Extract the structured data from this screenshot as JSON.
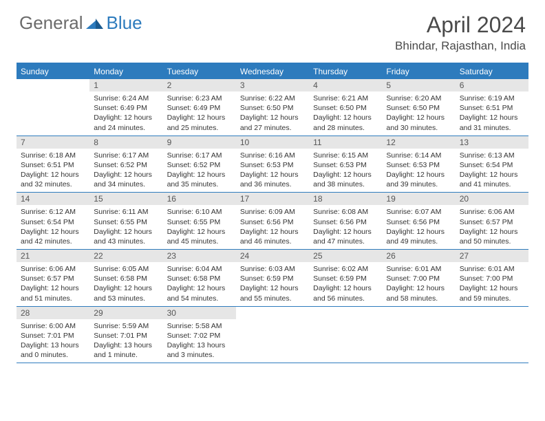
{
  "logo": {
    "text1": "General",
    "text2": "Blue"
  },
  "title": "April 2024",
  "location": "Bhindar, Rajasthan, India",
  "colors": {
    "header_bg": "#2d7bbd",
    "header_text": "#ffffff",
    "daynum_bg": "#e6e6e6",
    "daynum_text": "#555555",
    "info_text": "#333333",
    "rule": "#2d7bbd",
    "logo_gray": "#6b6b6b",
    "logo_blue": "#2d7bbd"
  },
  "day_names": [
    "Sunday",
    "Monday",
    "Tuesday",
    "Wednesday",
    "Thursday",
    "Friday",
    "Saturday"
  ],
  "weeks": [
    [
      {
        "n": "",
        "sunrise": "",
        "sunset": "",
        "daylight": ""
      },
      {
        "n": "1",
        "sunrise": "Sunrise: 6:24 AM",
        "sunset": "Sunset: 6:49 PM",
        "daylight": "Daylight: 12 hours and 24 minutes."
      },
      {
        "n": "2",
        "sunrise": "Sunrise: 6:23 AM",
        "sunset": "Sunset: 6:49 PM",
        "daylight": "Daylight: 12 hours and 25 minutes."
      },
      {
        "n": "3",
        "sunrise": "Sunrise: 6:22 AM",
        "sunset": "Sunset: 6:50 PM",
        "daylight": "Daylight: 12 hours and 27 minutes."
      },
      {
        "n": "4",
        "sunrise": "Sunrise: 6:21 AM",
        "sunset": "Sunset: 6:50 PM",
        "daylight": "Daylight: 12 hours and 28 minutes."
      },
      {
        "n": "5",
        "sunrise": "Sunrise: 6:20 AM",
        "sunset": "Sunset: 6:50 PM",
        "daylight": "Daylight: 12 hours and 30 minutes."
      },
      {
        "n": "6",
        "sunrise": "Sunrise: 6:19 AM",
        "sunset": "Sunset: 6:51 PM",
        "daylight": "Daylight: 12 hours and 31 minutes."
      }
    ],
    [
      {
        "n": "7",
        "sunrise": "Sunrise: 6:18 AM",
        "sunset": "Sunset: 6:51 PM",
        "daylight": "Daylight: 12 hours and 32 minutes."
      },
      {
        "n": "8",
        "sunrise": "Sunrise: 6:17 AM",
        "sunset": "Sunset: 6:52 PM",
        "daylight": "Daylight: 12 hours and 34 minutes."
      },
      {
        "n": "9",
        "sunrise": "Sunrise: 6:17 AM",
        "sunset": "Sunset: 6:52 PM",
        "daylight": "Daylight: 12 hours and 35 minutes."
      },
      {
        "n": "10",
        "sunrise": "Sunrise: 6:16 AM",
        "sunset": "Sunset: 6:53 PM",
        "daylight": "Daylight: 12 hours and 36 minutes."
      },
      {
        "n": "11",
        "sunrise": "Sunrise: 6:15 AM",
        "sunset": "Sunset: 6:53 PM",
        "daylight": "Daylight: 12 hours and 38 minutes."
      },
      {
        "n": "12",
        "sunrise": "Sunrise: 6:14 AM",
        "sunset": "Sunset: 6:53 PM",
        "daylight": "Daylight: 12 hours and 39 minutes."
      },
      {
        "n": "13",
        "sunrise": "Sunrise: 6:13 AM",
        "sunset": "Sunset: 6:54 PM",
        "daylight": "Daylight: 12 hours and 41 minutes."
      }
    ],
    [
      {
        "n": "14",
        "sunrise": "Sunrise: 6:12 AM",
        "sunset": "Sunset: 6:54 PM",
        "daylight": "Daylight: 12 hours and 42 minutes."
      },
      {
        "n": "15",
        "sunrise": "Sunrise: 6:11 AM",
        "sunset": "Sunset: 6:55 PM",
        "daylight": "Daylight: 12 hours and 43 minutes."
      },
      {
        "n": "16",
        "sunrise": "Sunrise: 6:10 AM",
        "sunset": "Sunset: 6:55 PM",
        "daylight": "Daylight: 12 hours and 45 minutes."
      },
      {
        "n": "17",
        "sunrise": "Sunrise: 6:09 AM",
        "sunset": "Sunset: 6:56 PM",
        "daylight": "Daylight: 12 hours and 46 minutes."
      },
      {
        "n": "18",
        "sunrise": "Sunrise: 6:08 AM",
        "sunset": "Sunset: 6:56 PM",
        "daylight": "Daylight: 12 hours and 47 minutes."
      },
      {
        "n": "19",
        "sunrise": "Sunrise: 6:07 AM",
        "sunset": "Sunset: 6:56 PM",
        "daylight": "Daylight: 12 hours and 49 minutes."
      },
      {
        "n": "20",
        "sunrise": "Sunrise: 6:06 AM",
        "sunset": "Sunset: 6:57 PM",
        "daylight": "Daylight: 12 hours and 50 minutes."
      }
    ],
    [
      {
        "n": "21",
        "sunrise": "Sunrise: 6:06 AM",
        "sunset": "Sunset: 6:57 PM",
        "daylight": "Daylight: 12 hours and 51 minutes."
      },
      {
        "n": "22",
        "sunrise": "Sunrise: 6:05 AM",
        "sunset": "Sunset: 6:58 PM",
        "daylight": "Daylight: 12 hours and 53 minutes."
      },
      {
        "n": "23",
        "sunrise": "Sunrise: 6:04 AM",
        "sunset": "Sunset: 6:58 PM",
        "daylight": "Daylight: 12 hours and 54 minutes."
      },
      {
        "n": "24",
        "sunrise": "Sunrise: 6:03 AM",
        "sunset": "Sunset: 6:59 PM",
        "daylight": "Daylight: 12 hours and 55 minutes."
      },
      {
        "n": "25",
        "sunrise": "Sunrise: 6:02 AM",
        "sunset": "Sunset: 6:59 PM",
        "daylight": "Daylight: 12 hours and 56 minutes."
      },
      {
        "n": "26",
        "sunrise": "Sunrise: 6:01 AM",
        "sunset": "Sunset: 7:00 PM",
        "daylight": "Daylight: 12 hours and 58 minutes."
      },
      {
        "n": "27",
        "sunrise": "Sunrise: 6:01 AM",
        "sunset": "Sunset: 7:00 PM",
        "daylight": "Daylight: 12 hours and 59 minutes."
      }
    ],
    [
      {
        "n": "28",
        "sunrise": "Sunrise: 6:00 AM",
        "sunset": "Sunset: 7:01 PM",
        "daylight": "Daylight: 13 hours and 0 minutes."
      },
      {
        "n": "29",
        "sunrise": "Sunrise: 5:59 AM",
        "sunset": "Sunset: 7:01 PM",
        "daylight": "Daylight: 13 hours and 1 minute."
      },
      {
        "n": "30",
        "sunrise": "Sunrise: 5:58 AM",
        "sunset": "Sunset: 7:02 PM",
        "daylight": "Daylight: 13 hours and 3 minutes."
      },
      {
        "n": "",
        "sunrise": "",
        "sunset": "",
        "daylight": ""
      },
      {
        "n": "",
        "sunrise": "",
        "sunset": "",
        "daylight": ""
      },
      {
        "n": "",
        "sunrise": "",
        "sunset": "",
        "daylight": ""
      },
      {
        "n": "",
        "sunrise": "",
        "sunset": "",
        "daylight": ""
      }
    ]
  ]
}
